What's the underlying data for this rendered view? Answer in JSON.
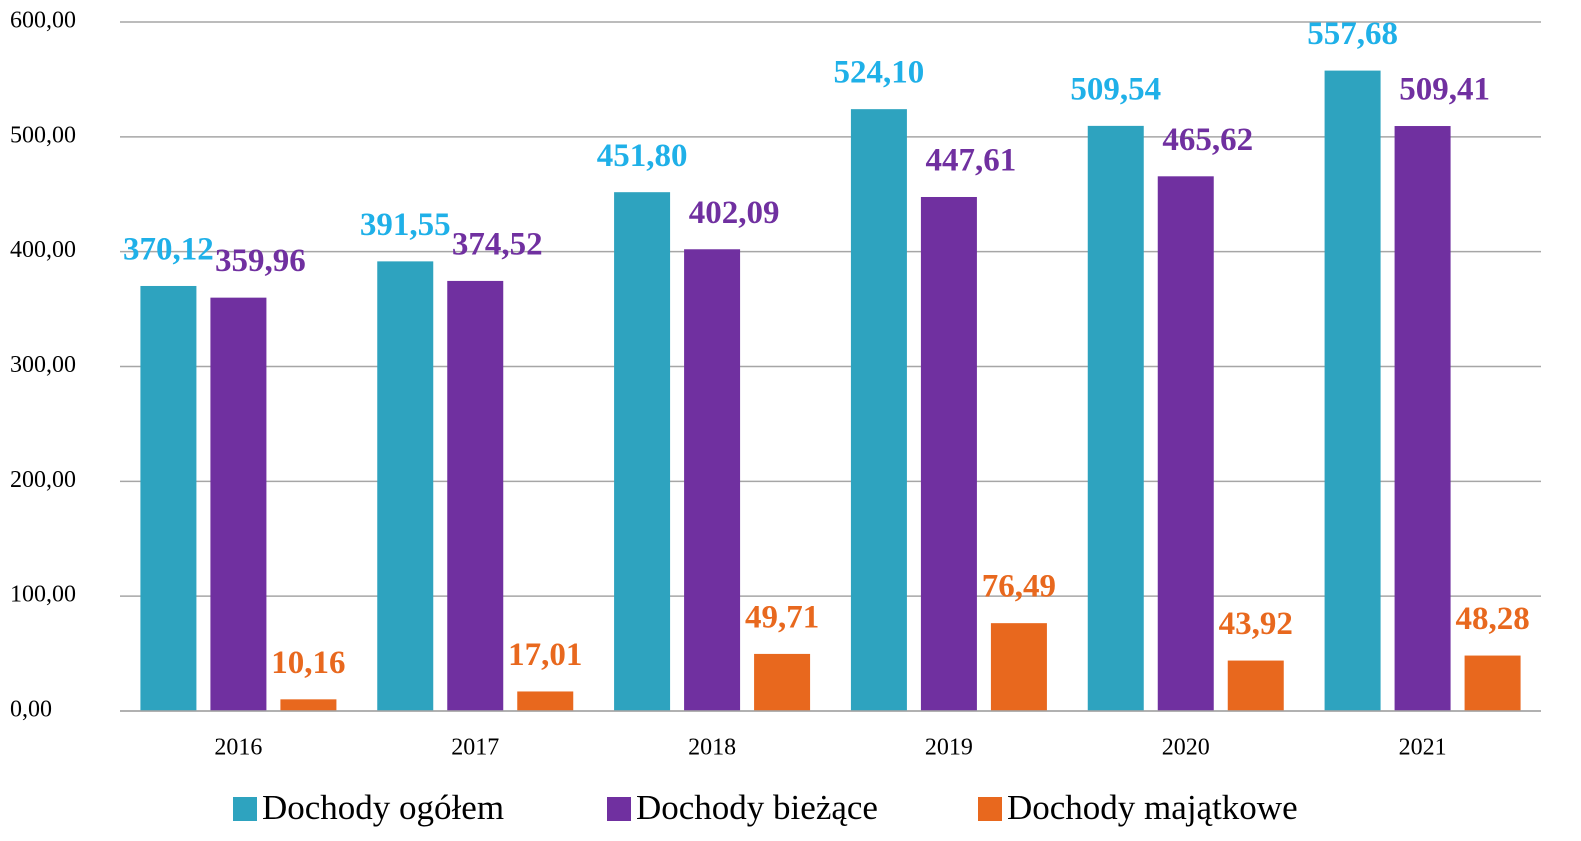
{
  "chart_data": {
    "type": "bar",
    "categories": [
      "2016",
      "2017",
      "2018",
      "2019",
      "2020",
      "2021"
    ],
    "series": [
      {
        "name": "Dochody ogółem",
        "color": "#2ea3bf",
        "label_color": "#1fb0e8",
        "values": [
          370.12,
          391.55,
          451.8,
          524.1,
          509.54,
          557.68
        ],
        "value_labels": [
          "370,12",
          "391,55",
          "451,80",
          "524,10",
          "509,54",
          "557,68"
        ]
      },
      {
        "name": "Dochody bieżące",
        "color": "#7030a0",
        "label_color": "#7030a0",
        "values": [
          359.96,
          374.52,
          402.09,
          447.61,
          465.62,
          509.41
        ],
        "value_labels": [
          "359,96",
          "374,52",
          "402,09",
          "447,61",
          "465,62",
          "509,41"
        ]
      },
      {
        "name": "Dochody majątkowe",
        "color": "#e8681e",
        "label_color": "#e8681e",
        "values": [
          10.16,
          17.01,
          49.71,
          76.49,
          43.92,
          48.28
        ],
        "value_labels": [
          "10,16",
          "17,01",
          "49,71",
          "76,49",
          "43,92",
          "48,28"
        ]
      }
    ],
    "ylim": [
      0,
      600
    ],
    "yticks": [
      {
        "value": 0,
        "label": "0,00"
      },
      {
        "value": 100,
        "label": "100,00"
      },
      {
        "value": 200,
        "label": "200,00"
      },
      {
        "value": 300,
        "label": "300,00"
      },
      {
        "value": 400,
        "label": "400,00"
      },
      {
        "value": 500,
        "label": "500,00"
      },
      {
        "value": 600,
        "label": "600,00"
      }
    ],
    "grid": true,
    "legend": "bottom"
  }
}
